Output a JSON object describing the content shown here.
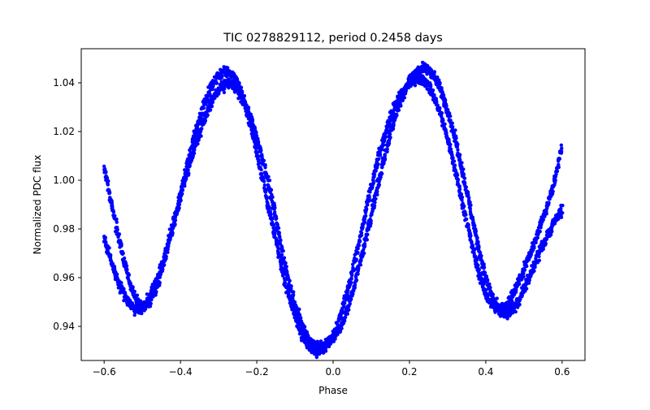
{
  "chart_data": {
    "type": "scatter",
    "title": "TIC 0278829112, period 0.2458 days",
    "xlabel": "Phase",
    "ylabel": "Normalized PDC flux",
    "xlim": [
      -0.66,
      0.66
    ],
    "ylim": [
      0.926,
      1.054
    ],
    "xticks": [
      -0.6,
      -0.4,
      -0.2,
      0.0,
      0.2,
      0.4,
      0.6
    ],
    "xtick_labels": [
      "−0.6",
      "−0.4",
      "−0.2",
      "0.0",
      "0.2",
      "0.4",
      "0.6"
    ],
    "yticks": [
      0.94,
      0.96,
      0.98,
      1.0,
      1.02,
      1.04
    ],
    "ytick_labels": [
      "0.94",
      "0.96",
      "0.98",
      "1.00",
      "1.02",
      "1.04"
    ],
    "grid": false,
    "legend": "none",
    "marker_color": "#0000ff",
    "series": [
      {
        "x": [
          -0.6,
          -0.58,
          -0.56,
          -0.54,
          -0.52,
          -0.5,
          -0.48,
          -0.46,
          -0.44,
          -0.42,
          -0.4,
          -0.38,
          -0.36,
          -0.34,
          -0.32,
          -0.3,
          -0.28,
          -0.26,
          -0.24,
          -0.22,
          -0.2,
          -0.18,
          -0.16,
          -0.14,
          -0.12,
          -0.1,
          -0.08,
          -0.06,
          -0.04,
          -0.02,
          0.0,
          0.02,
          0.04,
          0.06,
          0.08,
          0.1,
          0.12,
          0.14,
          0.16,
          0.18,
          0.2,
          0.22,
          0.24,
          0.26,
          0.28,
          0.3,
          0.32,
          0.34,
          0.36,
          0.38,
          0.4,
          0.42,
          0.44,
          0.46,
          0.48,
          0.5,
          0.52,
          0.54,
          0.56,
          0.58,
          0.6
        ],
        "y": [
          1.005,
          0.99,
          0.975,
          0.962,
          0.952,
          0.948,
          0.95,
          0.957,
          0.968,
          0.981,
          0.994,
          1.008,
          1.02,
          1.03,
          1.038,
          1.043,
          1.045,
          1.043,
          1.036,
          1.025,
          1.012,
          0.997,
          0.982,
          0.968,
          0.955,
          0.944,
          0.936,
          0.931,
          0.93,
          0.932,
          0.936,
          0.945,
          0.956,
          0.969,
          0.983,
          0.997,
          1.01,
          1.021,
          1.03,
          1.036,
          1.04,
          1.042,
          1.041,
          1.036,
          1.028,
          1.017,
          1.004,
          0.99,
          0.976,
          0.963,
          0.953,
          0.948,
          0.947,
          0.95,
          0.956,
          0.963,
          0.971,
          0.98,
          0.989,
          0.999,
          1.014
        ]
      },
      {
        "x": [
          -0.6,
          -0.58,
          -0.56,
          -0.54,
          -0.52,
          -0.5,
          -0.48,
          -0.46,
          -0.44,
          -0.42,
          -0.4,
          -0.38,
          -0.36,
          -0.34,
          -0.32,
          -0.3,
          -0.28,
          -0.26,
          -0.24,
          -0.22,
          -0.2,
          -0.18,
          -0.16,
          -0.14,
          -0.12,
          -0.1,
          -0.08,
          -0.06,
          -0.04,
          -0.02,
          0.0,
          0.02,
          0.04,
          0.06,
          0.08,
          0.1,
          0.12,
          0.14,
          0.16,
          0.18,
          0.2,
          0.22,
          0.24,
          0.26,
          0.28,
          0.3,
          0.32,
          0.34,
          0.36,
          0.38,
          0.4,
          0.42,
          0.44,
          0.46,
          0.48,
          0.5,
          0.52,
          0.54,
          0.56,
          0.58,
          0.6
        ],
        "y": [
          0.976,
          0.966,
          0.957,
          0.951,
          0.947,
          0.947,
          0.952,
          0.96,
          0.97,
          0.981,
          0.993,
          1.004,
          1.015,
          1.024,
          1.032,
          1.037,
          1.04,
          1.039,
          1.034,
          1.027,
          1.018,
          1.006,
          0.992,
          0.976,
          0.961,
          0.949,
          0.94,
          0.934,
          0.932,
          0.932,
          0.935,
          0.94,
          0.948,
          0.959,
          0.972,
          0.986,
          1.0,
          1.013,
          1.025,
          1.034,
          1.041,
          1.045,
          1.046,
          1.044,
          1.038,
          1.029,
          1.017,
          1.003,
          0.988,
          0.973,
          0.96,
          0.951,
          0.945,
          0.945,
          0.949,
          0.955,
          0.962,
          0.97,
          0.977,
          0.983,
          0.988
        ]
      }
    ]
  }
}
